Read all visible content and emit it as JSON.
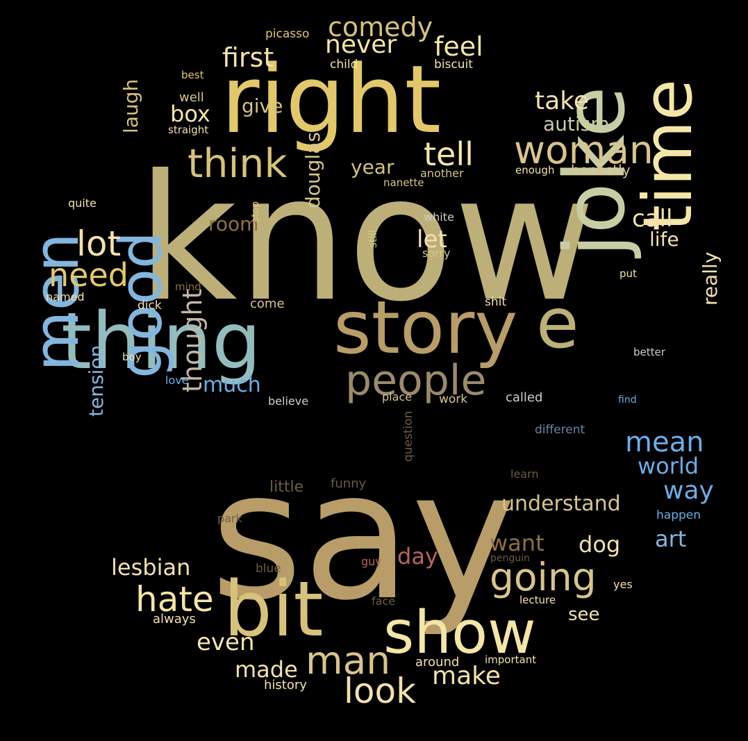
{
  "palette": {
    "background": "#000000",
    "khaki": "#bcb078",
    "tan": "#b89d68",
    "sand": "#d6c27a",
    "gold": "#e3c86a",
    "amber": "#ecc25a",
    "pale": "#f4e6a6",
    "cream": "#f3e1ac",
    "wheat": "#d8c48c",
    "teal": "#93bcbe",
    "sage": "#c9cda4",
    "blue": "#83b6de",
    "brightblue": "#6aaee8",
    "taupe": "#9c8a6c",
    "brown": "#8e7042",
    "dark": "#6e5d43",
    "rose": "#b8645c",
    "slate": "#6a86a4",
    "grey": "#cfcfc8",
    "silver": "#c3b7a4"
  },
  "words": [
    "know",
    "say",
    "right",
    "thing",
    "joke",
    "story",
    "time",
    "bit",
    "show",
    "men",
    "good",
    "people",
    "e",
    "think",
    "woman",
    "tell",
    "going",
    "man",
    "look",
    "hate",
    "mean",
    "thought",
    "lot",
    "need",
    "first",
    "never",
    "feel",
    "comedy",
    "laugh",
    "box",
    "take",
    "give",
    "autism",
    "year",
    "call",
    "life",
    "douglas",
    "let",
    "room",
    "really",
    "much",
    "lesbian",
    "tension",
    "world",
    "way",
    "art",
    "dog",
    "want",
    "understand",
    "day",
    "see",
    "even",
    "made",
    "make",
    "picasso",
    "child",
    "biscuit",
    "best",
    "well",
    "straight",
    "honestly",
    "enough",
    "another",
    "nanette",
    "stop",
    "still",
    "white",
    "sorry",
    "quite",
    "put",
    "mind",
    "named",
    "dick",
    "come",
    "shit",
    "better",
    "boy",
    "love",
    "believe",
    "place",
    "work",
    "called",
    "find",
    "different",
    "learn",
    "little",
    "funny",
    "question",
    "park",
    "happen",
    "blue",
    "guy",
    "penguin",
    "yes",
    "face",
    "lecture",
    "always",
    "around",
    "important",
    "history"
  ]
}
